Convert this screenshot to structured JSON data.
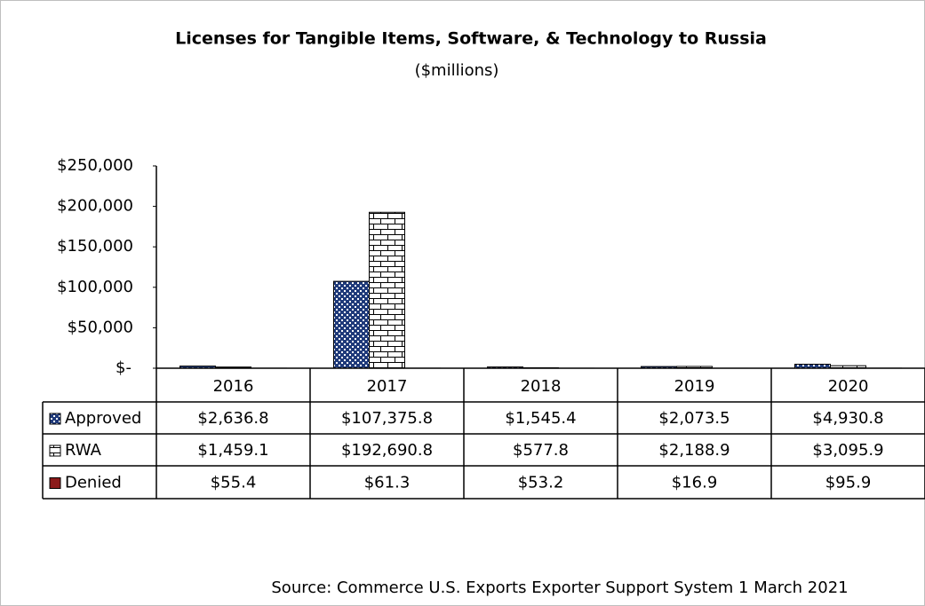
{
  "chart_data": {
    "type": "bar",
    "title": "Licenses for Tangible Items, Software, & Technology to Russia",
    "subtitle": "($millions)",
    "categories": [
      "2016",
      "2017",
      "2018",
      "2019",
      "2020"
    ],
    "series": [
      {
        "name": "Approved",
        "color": "#1f3a7a",
        "pattern": "checker",
        "values": [
          2636.8,
          107375.8,
          1545.4,
          2073.5,
          4930.8
        ],
        "value_labels": [
          "$2,636.8",
          "$107,375.8",
          "$1,545.4",
          "$2,073.5",
          "$4,930.8"
        ]
      },
      {
        "name": "RWA",
        "color": "#ffffff",
        "pattern": "brick",
        "values": [
          1459.1,
          192690.8,
          577.8,
          2188.9,
          3095.9
        ],
        "value_labels": [
          "$1,459.1",
          "$192,690.8",
          "$577.8",
          "$2,188.9",
          "$3,095.9"
        ]
      },
      {
        "name": "Denied",
        "color": "#8b1a1a",
        "pattern": "solid",
        "values": [
          55.4,
          61.3,
          53.2,
          16.9,
          95.9
        ],
        "value_labels": [
          "$55.4",
          "$61.3",
          "$53.2",
          "$16.9",
          "$95.9"
        ]
      }
    ],
    "ylim": [
      0,
      250000
    ],
    "yticks": [
      {
        "value": 0,
        "label": "$-"
      },
      {
        "value": 50000,
        "label": "$50,000"
      },
      {
        "value": 100000,
        "label": "$100,000"
      },
      {
        "value": 150000,
        "label": "$150,000"
      },
      {
        "value": 200000,
        "label": "$200,000"
      },
      {
        "value": 250000,
        "label": "$250,000"
      }
    ],
    "source": "Source: Commerce U.S. Exports Exporter Support System 1 March 2021"
  }
}
